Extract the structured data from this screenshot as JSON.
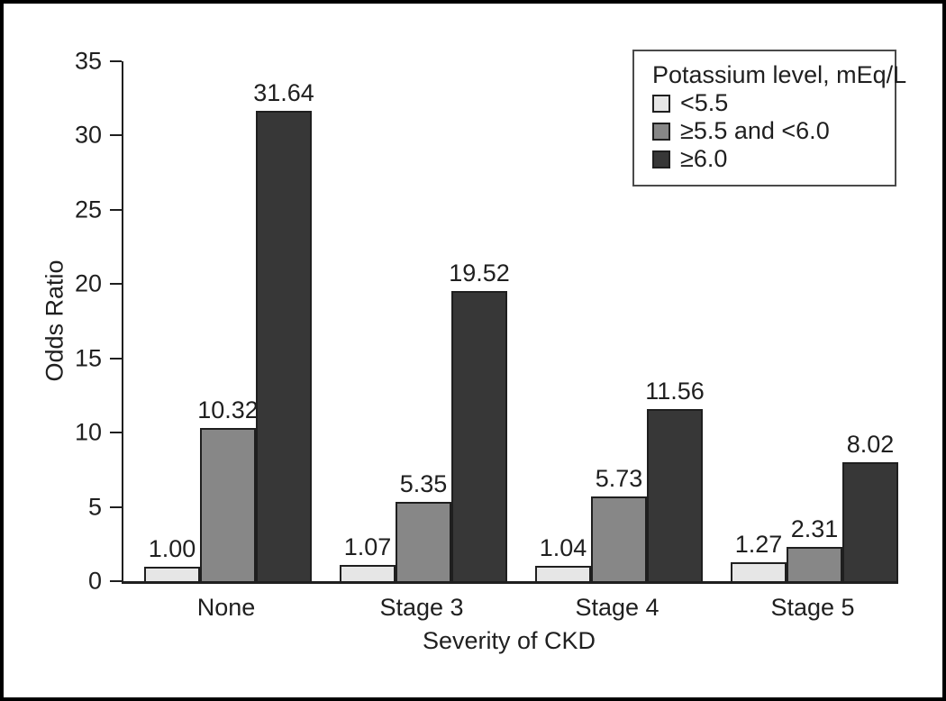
{
  "figure": {
    "background": "#ffffff",
    "frame_color": "#000000",
    "text_color": "#1f1f1f"
  },
  "chart_data": {
    "type": "bar",
    "title": "",
    "xlabel": "Severity of CKD",
    "ylabel": "Odds Ratio",
    "categories": [
      "None",
      "Stage 3",
      "Stage 4",
      "Stage 5"
    ],
    "series": [
      {
        "name": "<5.5",
        "color": "#e6e6e6",
        "values": [
          1.0,
          1.07,
          1.04,
          1.27
        ]
      },
      {
        "name": "≥5.5 and <6.0",
        "color": "#878787",
        "values": [
          10.32,
          5.35,
          5.73,
          2.31
        ]
      },
      {
        "name": "≥6.0",
        "color": "#373737",
        "values": [
          31.64,
          19.52,
          11.56,
          8.02
        ]
      }
    ],
    "value_label_decimals": 2,
    "ylim": [
      0,
      35
    ],
    "yticks": [
      0,
      5,
      10,
      15,
      20,
      25,
      30,
      35
    ],
    "grid": false,
    "bar_value_labels": true,
    "legend": {
      "title": "Potassium level, mEq/L",
      "position": "top-right"
    }
  }
}
